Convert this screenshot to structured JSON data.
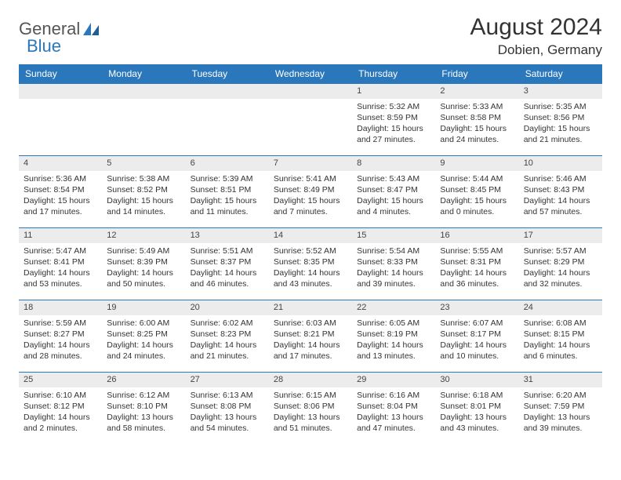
{
  "logo": {
    "text1": "General",
    "text2": "Blue"
  },
  "title": "August 2024",
  "location": "Dobien, Germany",
  "colors": {
    "header_bg": "#2a77bb",
    "header_fg": "#ffffff",
    "daynum_bg": "#ececec",
    "rule": "#2a77bb",
    "text": "#333333"
  },
  "weekdays": [
    "Sunday",
    "Monday",
    "Tuesday",
    "Wednesday",
    "Thursday",
    "Friday",
    "Saturday"
  ],
  "weeks": [
    [
      null,
      null,
      null,
      null,
      {
        "n": "1",
        "sr": "5:32 AM",
        "ss": "8:59 PM",
        "dl": "Daylight: 15 hours and 27 minutes."
      },
      {
        "n": "2",
        "sr": "5:33 AM",
        "ss": "8:58 PM",
        "dl": "Daylight: 15 hours and 24 minutes."
      },
      {
        "n": "3",
        "sr": "5:35 AM",
        "ss": "8:56 PM",
        "dl": "Daylight: 15 hours and 21 minutes."
      }
    ],
    [
      {
        "n": "4",
        "sr": "5:36 AM",
        "ss": "8:54 PM",
        "dl": "Daylight: 15 hours and 17 minutes."
      },
      {
        "n": "5",
        "sr": "5:38 AM",
        "ss": "8:52 PM",
        "dl": "Daylight: 15 hours and 14 minutes."
      },
      {
        "n": "6",
        "sr": "5:39 AM",
        "ss": "8:51 PM",
        "dl": "Daylight: 15 hours and 11 minutes."
      },
      {
        "n": "7",
        "sr": "5:41 AM",
        "ss": "8:49 PM",
        "dl": "Daylight: 15 hours and 7 minutes."
      },
      {
        "n": "8",
        "sr": "5:43 AM",
        "ss": "8:47 PM",
        "dl": "Daylight: 15 hours and 4 minutes."
      },
      {
        "n": "9",
        "sr": "5:44 AM",
        "ss": "8:45 PM",
        "dl": "Daylight: 15 hours and 0 minutes."
      },
      {
        "n": "10",
        "sr": "5:46 AM",
        "ss": "8:43 PM",
        "dl": "Daylight: 14 hours and 57 minutes."
      }
    ],
    [
      {
        "n": "11",
        "sr": "5:47 AM",
        "ss": "8:41 PM",
        "dl": "Daylight: 14 hours and 53 minutes."
      },
      {
        "n": "12",
        "sr": "5:49 AM",
        "ss": "8:39 PM",
        "dl": "Daylight: 14 hours and 50 minutes."
      },
      {
        "n": "13",
        "sr": "5:51 AM",
        "ss": "8:37 PM",
        "dl": "Daylight: 14 hours and 46 minutes."
      },
      {
        "n": "14",
        "sr": "5:52 AM",
        "ss": "8:35 PM",
        "dl": "Daylight: 14 hours and 43 minutes."
      },
      {
        "n": "15",
        "sr": "5:54 AM",
        "ss": "8:33 PM",
        "dl": "Daylight: 14 hours and 39 minutes."
      },
      {
        "n": "16",
        "sr": "5:55 AM",
        "ss": "8:31 PM",
        "dl": "Daylight: 14 hours and 36 minutes."
      },
      {
        "n": "17",
        "sr": "5:57 AM",
        "ss": "8:29 PM",
        "dl": "Daylight: 14 hours and 32 minutes."
      }
    ],
    [
      {
        "n": "18",
        "sr": "5:59 AM",
        "ss": "8:27 PM",
        "dl": "Daylight: 14 hours and 28 minutes."
      },
      {
        "n": "19",
        "sr": "6:00 AM",
        "ss": "8:25 PM",
        "dl": "Daylight: 14 hours and 24 minutes."
      },
      {
        "n": "20",
        "sr": "6:02 AM",
        "ss": "8:23 PM",
        "dl": "Daylight: 14 hours and 21 minutes."
      },
      {
        "n": "21",
        "sr": "6:03 AM",
        "ss": "8:21 PM",
        "dl": "Daylight: 14 hours and 17 minutes."
      },
      {
        "n": "22",
        "sr": "6:05 AM",
        "ss": "8:19 PM",
        "dl": "Daylight: 14 hours and 13 minutes."
      },
      {
        "n": "23",
        "sr": "6:07 AM",
        "ss": "8:17 PM",
        "dl": "Daylight: 14 hours and 10 minutes."
      },
      {
        "n": "24",
        "sr": "6:08 AM",
        "ss": "8:15 PM",
        "dl": "Daylight: 14 hours and 6 minutes."
      }
    ],
    [
      {
        "n": "25",
        "sr": "6:10 AM",
        "ss": "8:12 PM",
        "dl": "Daylight: 14 hours and 2 minutes."
      },
      {
        "n": "26",
        "sr": "6:12 AM",
        "ss": "8:10 PM",
        "dl": "Daylight: 13 hours and 58 minutes."
      },
      {
        "n": "27",
        "sr": "6:13 AM",
        "ss": "8:08 PM",
        "dl": "Daylight: 13 hours and 54 minutes."
      },
      {
        "n": "28",
        "sr": "6:15 AM",
        "ss": "8:06 PM",
        "dl": "Daylight: 13 hours and 51 minutes."
      },
      {
        "n": "29",
        "sr": "6:16 AM",
        "ss": "8:04 PM",
        "dl": "Daylight: 13 hours and 47 minutes."
      },
      {
        "n": "30",
        "sr": "6:18 AM",
        "ss": "8:01 PM",
        "dl": "Daylight: 13 hours and 43 minutes."
      },
      {
        "n": "31",
        "sr": "6:20 AM",
        "ss": "7:59 PM",
        "dl": "Daylight: 13 hours and 39 minutes."
      }
    ]
  ],
  "labels": {
    "sunrise": "Sunrise:",
    "sunset": "Sunset:"
  }
}
